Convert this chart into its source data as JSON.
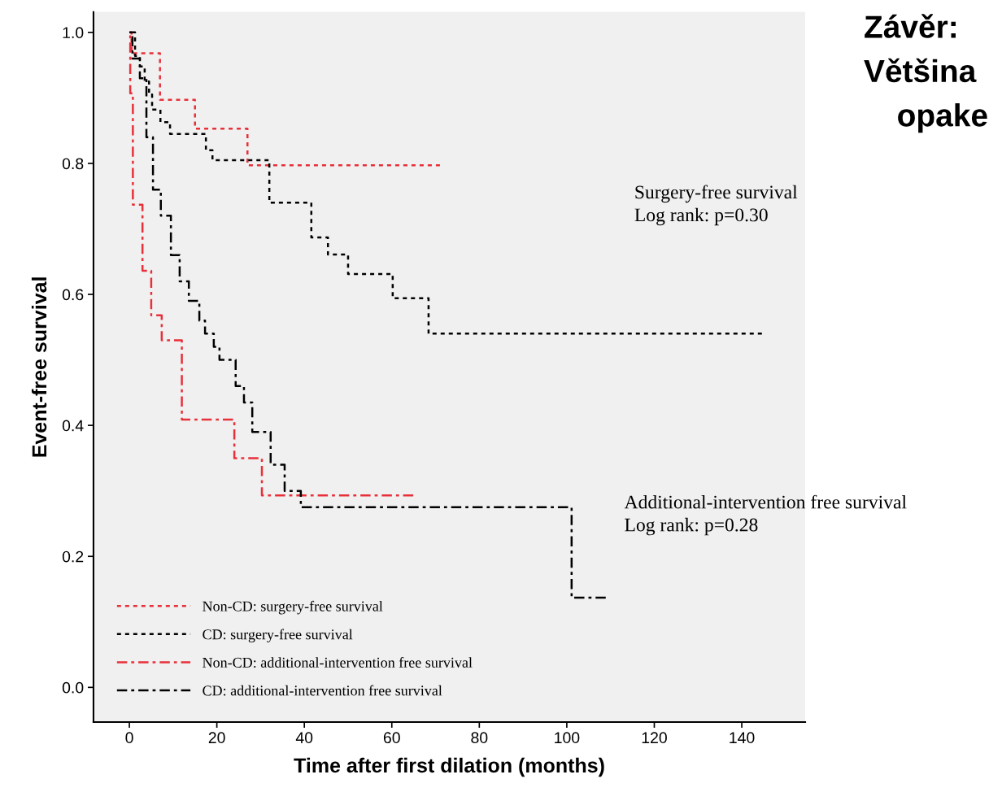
{
  "chart_data": {
    "type": "step",
    "xlabel": "Time after first dilation (months)",
    "ylabel": "Event-free survival",
    "xlim": [
      -8.2,
      154.5
    ],
    "ylim": [
      -0.053,
      1.031
    ],
    "xticks": [
      0,
      20,
      40,
      60,
      80,
      100,
      120,
      140
    ],
    "yticks": [
      {
        "value": 0,
        "label": "0.0"
      },
      {
        "value": 0.2,
        "label": "0.2"
      },
      {
        "value": 0.4,
        "label": "0.4"
      },
      {
        "value": 0.6,
        "label": "0.6"
      },
      {
        "value": 0.8,
        "label": "0.8"
      },
      {
        "value": 1,
        "label": "1.0"
      }
    ],
    "grid": false,
    "legend": "bottom left",
    "series": [
      {
        "name": "Non-CD: surgery-free survival",
        "color": "#e8303a",
        "line_style": "dotted",
        "x": [
          0,
          0.5,
          7,
          15,
          27,
          71
        ],
        "values": [
          1,
          0.968,
          0.897,
          0.853,
          0.797,
          0.797
        ]
      },
      {
        "name": "CD: surgery-free survival",
        "color": "#000000",
        "line_style": "dotted",
        "x": [
          0,
          1.3,
          2.4,
          3.5,
          4.5,
          5.2,
          7.1,
          9.3,
          17.5,
          19,
          32,
          41.6,
          45.4,
          50,
          60.2,
          68.4,
          144.6
        ],
        "values": [
          1,
          0.964,
          0.948,
          0.925,
          0.905,
          0.882,
          0.863,
          0.845,
          0.82,
          0.805,
          0.74,
          0.687,
          0.661,
          0.631,
          0.594,
          0.54,
          0.54
        ]
      },
      {
        "name": "Non-CD: additional-intervention free survival",
        "color": "#e8303a",
        "line_style": "dashdot",
        "x": [
          0,
          0.2,
          0.8,
          3,
          5,
          7.4,
          12,
          24,
          30.3,
          64.9
        ],
        "values": [
          1,
          0.907,
          0.737,
          0.636,
          0.568,
          0.53,
          0.409,
          0.35,
          0.293,
          0.293
        ]
      },
      {
        "name": "CD: additional-intervention free survival",
        "color": "#000000",
        "line_style": "dashdot",
        "x": [
          0,
          0.7,
          2.4,
          3.9,
          5.4,
          7.2,
          9.5,
          11.5,
          13.6,
          16,
          17.3,
          19.3,
          20.6,
          24.3,
          26.2,
          28.1,
          32.3,
          35.5,
          39.2,
          101.1,
          108.9
        ],
        "values": [
          1,
          0.96,
          0.93,
          0.84,
          0.76,
          0.72,
          0.66,
          0.62,
          0.59,
          0.56,
          0.54,
          0.52,
          0.5,
          0.46,
          0.435,
          0.39,
          0.34,
          0.3,
          0.275,
          0.137,
          0.137
        ]
      }
    ],
    "annotations": [
      "Surgery-free survival\nLog rank: p=0.30",
      "Additional-intervention free survival\nLog rank: p=0.28",
      "Závěr:",
      "Většina",
      "opake"
    ]
  }
}
